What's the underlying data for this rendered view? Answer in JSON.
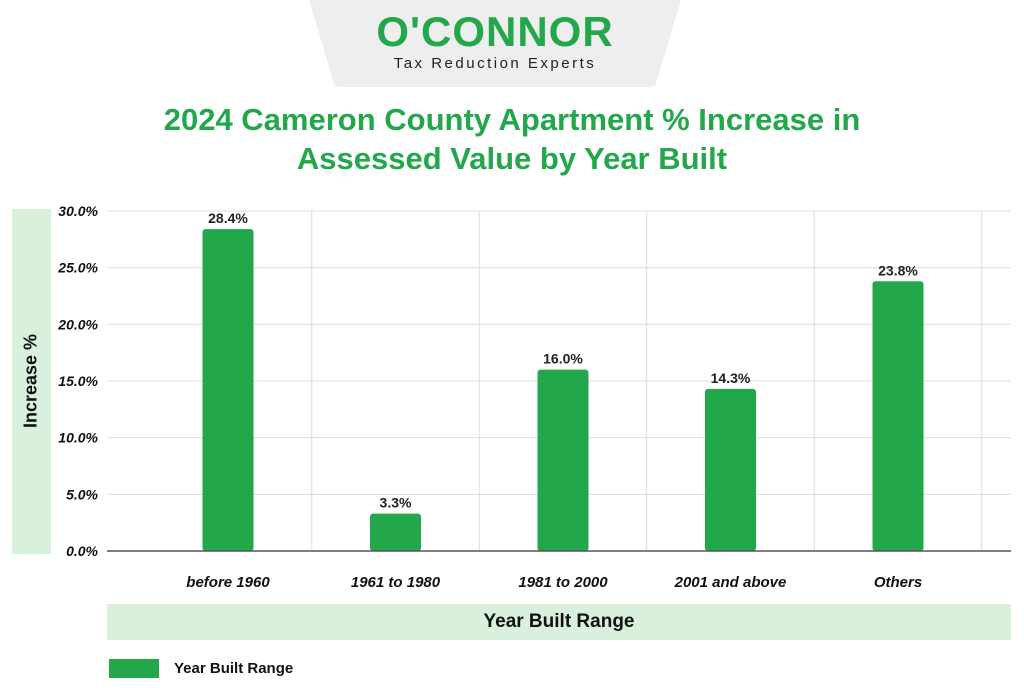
{
  "logo": {
    "wordmark": "O'CONNOR",
    "tagline": "Tax Reduction Experts"
  },
  "chart_data": {
    "type": "bar",
    "title": "2024 Cameron County Apartment % Increase in Assessed Value by Year Built",
    "title_lines": [
      "2024 Cameron County Apartment % Increase in",
      "Assessed Value by Year Built"
    ],
    "xlabel": "Year Built Range",
    "ylabel": "Increase %",
    "categories": [
      "before 1960",
      "1961 to 1980",
      "1981 to 2000",
      "2001 and above",
      "Others"
    ],
    "series": [
      {
        "name": "Year Built Range",
        "values": [
          28.4,
          3.3,
          16.0,
          14.3,
          23.8
        ],
        "labels": [
          "28.4%",
          "3.3%",
          "16.0%",
          "14.3%",
          "23.8%"
        ]
      }
    ],
    "ylim": [
      0,
      30
    ],
    "yticks": [
      0,
      5,
      10,
      15,
      20,
      25,
      30
    ],
    "ytick_labels": [
      "0.0%",
      "5.0%",
      "10.0%",
      "15.0%",
      "20.0%",
      "25.0%",
      "30.0%"
    ],
    "grid": true,
    "legend_position": "bottom-left",
    "colors": {
      "bar": "#22a84a",
      "grid": "#dddddd",
      "title": "#22a84a",
      "band": "#d8f0dc"
    }
  }
}
